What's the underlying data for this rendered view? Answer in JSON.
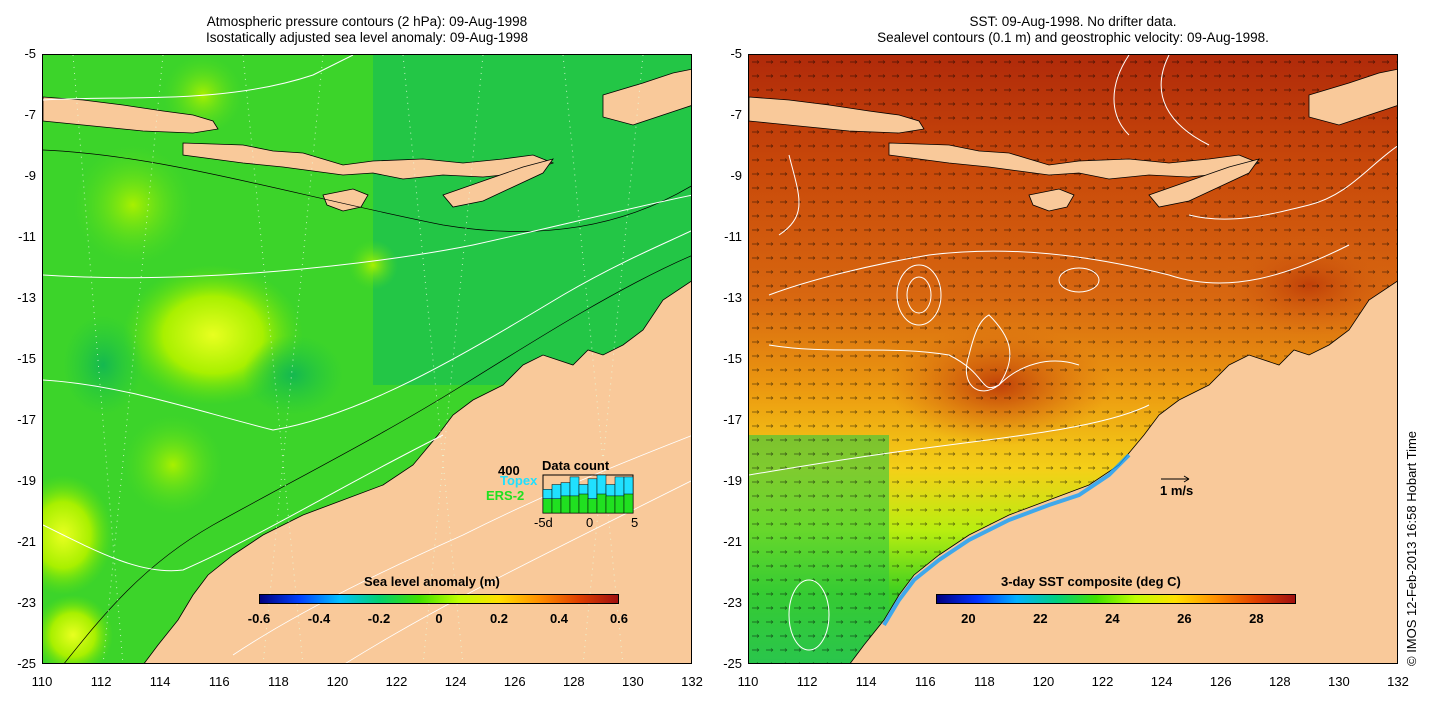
{
  "left_panel": {
    "title_line1": "Atmospheric pressure contours (2 hPa): 09-Aug-1998",
    "title_line2": "Isostatically adjusted sea level anomaly: 09-Aug-1998",
    "colorbar": {
      "label": "Sea level anomaly (m)",
      "ticks": [
        "-0.6",
        "-0.4",
        "-0.2",
        "0",
        "0.2",
        "0.4",
        "0.6"
      ],
      "range": [
        -0.6,
        0.6
      ],
      "colors": [
        "#000080",
        "#0040ff",
        "#00c0ff",
        "#00d070",
        "#40e000",
        "#c0ff00",
        "#ffe000",
        "#ff9000",
        "#e04000",
        "#a01010"
      ]
    },
    "data_count_inset": {
      "label": "Data count",
      "max_label": "400",
      "topex_label": "Topex",
      "ers2_label": "ERS-2",
      "x_ticks": [
        "-5d",
        "0",
        "5"
      ],
      "topex_values": [
        250,
        300,
        320,
        380,
        300,
        360,
        400,
        300,
        380,
        380
      ],
      "ers2_values": [
        150,
        150,
        180,
        180,
        200,
        150,
        200,
        180,
        180,
        200
      ],
      "max": 400
    }
  },
  "right_panel": {
    "title_line1": "SST: 09-Aug-1998. No drifter data.",
    "title_line2": "Sealevel contours (0.1 m) and geostrophic velocity: 09-Aug-1998.",
    "velocity_scale_label": "1 m/s",
    "colorbar": {
      "label": "3-day SST composite (deg C)",
      "ticks": [
        "20",
        "22",
        "24",
        "26",
        "28"
      ],
      "range": [
        19.1,
        29.1
      ],
      "colors": [
        "#000080",
        "#0030ff",
        "#00b0ff",
        "#00d080",
        "#40e000",
        "#c0ff00",
        "#ffe000",
        "#ff9000",
        "#e04000",
        "#a01010"
      ]
    }
  },
  "axes": {
    "lat_ticks": [
      "-5",
      "-7",
      "-9",
      "-11",
      "-13",
      "-15",
      "-17",
      "-19",
      "-21",
      "-23",
      "-25"
    ],
    "lon_ticks": [
      "110",
      "112",
      "114",
      "116",
      "118",
      "120",
      "122",
      "124",
      "126",
      "128",
      "130",
      "132"
    ],
    "lat_range": [
      -25,
      -5
    ],
    "lon_range": [
      110,
      132
    ]
  },
  "colors": {
    "land": "#f9c99a",
    "sla_background": "#2ed130",
    "sst_warm": "#d25a0a",
    "sst_north": "#b02a0a"
  },
  "copyright": "© IMOS 12-Feb-2013 16:58 Hobart Time"
}
